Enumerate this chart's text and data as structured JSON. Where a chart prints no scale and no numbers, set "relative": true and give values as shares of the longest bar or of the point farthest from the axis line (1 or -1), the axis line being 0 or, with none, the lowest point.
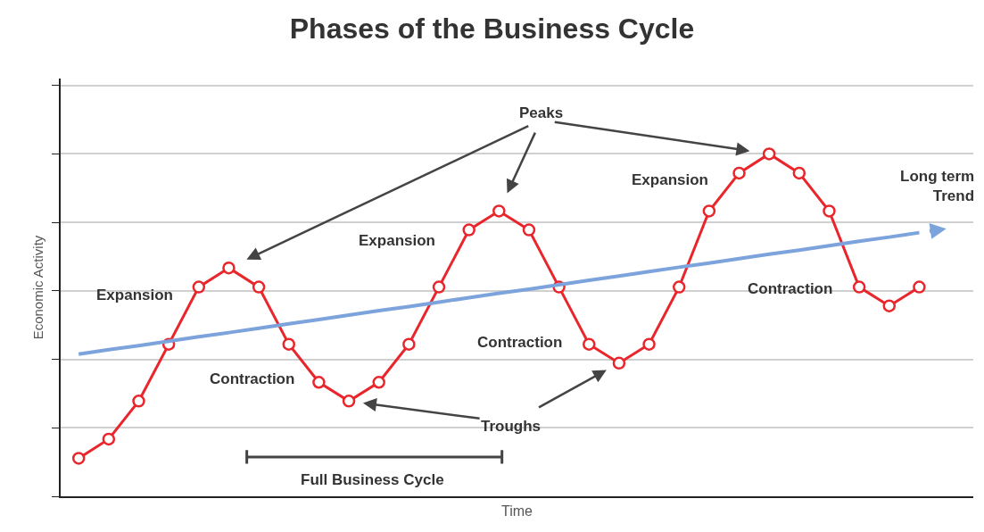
{
  "chart_data": {
    "type": "line",
    "title": "Phases of the Business Cycle",
    "xlabel": "Time",
    "ylabel": "Economic Activity",
    "relative": true,
    "grid": "y",
    "categories": [
      null,
      null,
      null,
      null,
      null,
      null,
      null,
      null,
      null,
      null,
      null,
      null,
      null,
      null,
      null,
      null,
      null,
      null,
      null,
      null,
      null,
      null,
      null,
      null,
      null,
      null,
      null,
      null,
      null
    ],
    "series": [
      {
        "color": "#e8262b",
        "marker": "circle",
        "values": [
          0.111,
          0.167,
          0.278,
          0.444,
          0.611,
          0.667,
          0.611,
          0.444,
          0.333,
          0.278,
          0.333,
          0.444,
          0.611,
          0.778,
          0.833,
          0.778,
          0.611,
          0.444,
          0.389,
          0.444,
          0.611,
          0.833,
          0.944,
          1,
          0.944,
          0.833,
          0.611,
          0.556,
          0.611
        ]
      },
      {
        "color": "#7da3dc",
        "marker": "none",
        "values": [
          0.415,
          0.428,
          0.44,
          0.453,
          0.466,
          0.478,
          0.491,
          0.504,
          0.516,
          0.529,
          0.542,
          0.554,
          0.567,
          0.58,
          0.593,
          0.605,
          0.618,
          0.631,
          0.643,
          0.656,
          0.669,
          0.681,
          0.694,
          0.707,
          0.719,
          0.732,
          0.745,
          0.757,
          0.77
        ]
      }
    ],
    "annotations": [
      "Peaks",
      "Troughs",
      "Expansion",
      "Contraction",
      "Expansion",
      "Contraction",
      "Expansion",
      "Contraction",
      "Long term Trend",
      "Full Business Cycle"
    ]
  }
}
